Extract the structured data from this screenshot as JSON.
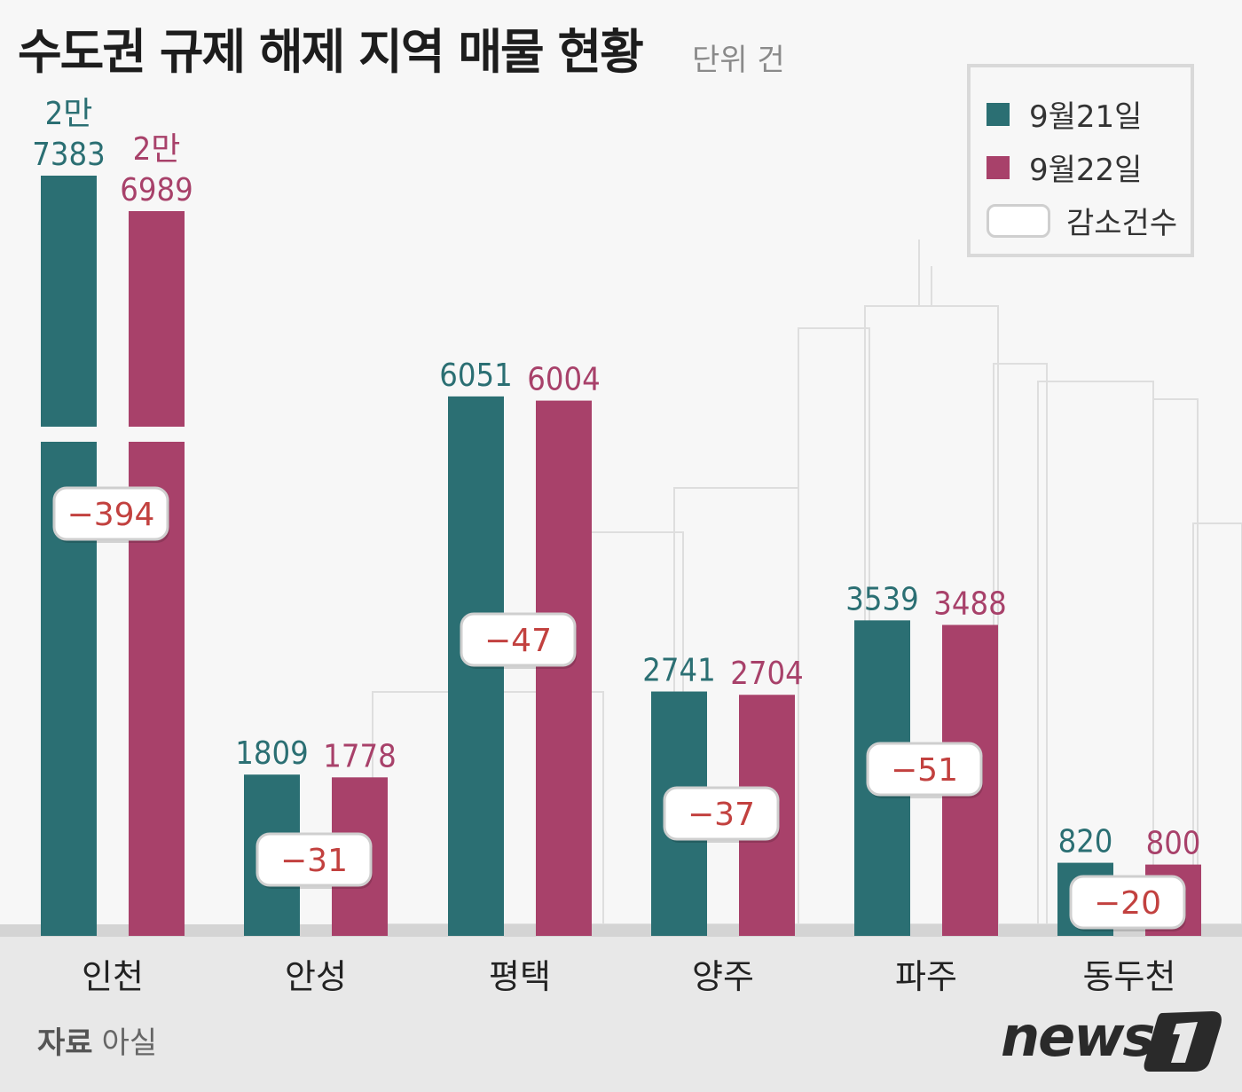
{
  "title": "수도권 규제 해제 지역 매물 현황",
  "unit": "단위 건",
  "source_label": "자료",
  "source_value": "아실",
  "logo": "news1",
  "colors": {
    "series1": "#2b6f73",
    "series2": "#a8416a",
    "diff_text": "#c2413f",
    "background": "#f7f7f7",
    "floor": "#e8e8e8"
  },
  "legend": [
    {
      "label": "9월21일",
      "color": "#2b6f73"
    },
    {
      "label": "9월22일",
      "color": "#a8416a"
    },
    {
      "label": "감소건수",
      "icon": "white-rounded-box"
    }
  ],
  "chart_data": {
    "type": "bar",
    "title": "수도권 규제 해제 지역 매물 현황",
    "unit": "단위 건",
    "categories": [
      "인천",
      "안성",
      "평택",
      "양주",
      "파주",
      "동두천"
    ],
    "series": [
      {
        "name": "9월21일",
        "values": [
          27383,
          1809,
          6051,
          2741,
          3539,
          820
        ],
        "labels": [
          "2만\n7383",
          "1809",
          "6051",
          "2741",
          "3539",
          "820"
        ]
      },
      {
        "name": "9월22일",
        "values": [
          26989,
          1778,
          6004,
          2704,
          3488,
          800
        ],
        "labels": [
          "2만\n6989",
          "1778",
          "6004",
          "2704",
          "3488",
          "800"
        ]
      }
    ],
    "differences": {
      "name": "감소건수",
      "values": [
        -394,
        -31,
        -47,
        -37,
        -51,
        -20
      ],
      "labels": [
        "−394",
        "−31",
        "−47",
        "−37",
        "−51",
        "−20"
      ]
    },
    "axis_break": "인천 bars truncated",
    "grid": false,
    "legend_position": "top-right"
  }
}
